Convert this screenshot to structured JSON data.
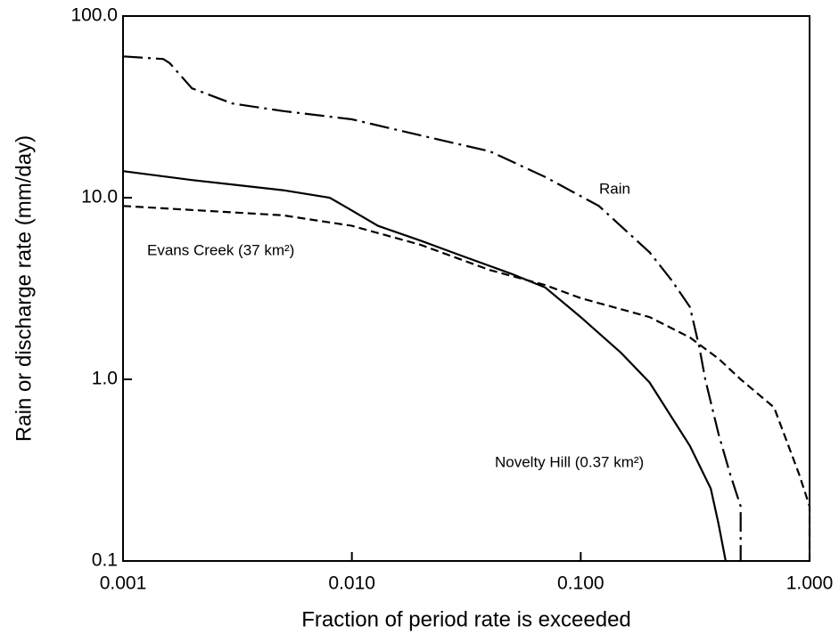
{
  "chart_data": {
    "type": "line",
    "xlabel": "Fraction of period rate is exceeded",
    "ylabel": "Rain or discharge rate (mm/day)",
    "xscale": "log",
    "yscale": "log",
    "xlim": [
      0.001,
      1
    ],
    "ylim": [
      0.1,
      100
    ],
    "xticks": [
      0.001,
      {
        "value": 0.01,
        "label": "0.010"
      },
      {
        "value": 0.1,
        "label": "0.100"
      },
      {
        "value": 1,
        "label": "1.000"
      }
    ],
    "yticks": [
      {
        "value": 0.1,
        "label": "0.1"
      },
      {
        "value": 1,
        "label": "1.0"
      },
      {
        "value": 10,
        "label": "10.0"
      },
      {
        "value": 100,
        "label": "100.0"
      }
    ],
    "annotations": [
      "Rain",
      "Evans Creek (37 km²)",
      "Novelty Hill (0.37 km²)"
    ],
    "series": [
      {
        "label": "Rain",
        "color": "#000000",
        "line_style": "dashdot",
        "x": [
          0.001,
          0.0015,
          0.0016,
          0.002,
          0.003,
          0.005,
          0.01,
          0.02,
          0.04,
          0.07,
          0.12,
          0.2,
          0.25,
          0.3,
          0.33,
          0.35,
          0.4,
          0.45,
          0.5,
          0.5
        ],
        "values": [
          60,
          58,
          55,
          40,
          33,
          30,
          27,
          22,
          18,
          13,
          9,
          5,
          3.5,
          2.5,
          1.5,
          1.0,
          0.5,
          0.3,
          0.2,
          0.1
        ]
      },
      {
        "label": "Evans Creek (37 km²)",
        "color": "#000000",
        "line_style": "dashed",
        "x": [
          0.001,
          0.005,
          0.01,
          0.02,
          0.04,
          0.07,
          0.1,
          0.2,
          0.3,
          0.4,
          0.5,
          0.7,
          0.9,
          1.0,
          1.0
        ],
        "values": [
          9,
          8,
          7,
          5.5,
          4,
          3.3,
          2.8,
          2.2,
          1.7,
          1.3,
          1.0,
          0.7,
          0.3,
          0.2,
          0.1
        ]
      },
      {
        "label": "Novelty Hill (0.37 km²)",
        "color": "#000000",
        "line_style": "solid",
        "x": [
          0.001,
          0.002,
          0.005,
          0.008,
          0.01,
          0.013,
          0.02,
          0.03,
          0.05,
          0.07,
          0.1,
          0.15,
          0.2,
          0.3,
          0.37,
          0.4,
          0.43
        ],
        "values": [
          14,
          12.5,
          11,
          10,
          8.5,
          7,
          5.8,
          4.8,
          3.8,
          3.2,
          2.2,
          1.4,
          0.96,
          0.43,
          0.25,
          0.16,
          0.1
        ]
      }
    ]
  }
}
